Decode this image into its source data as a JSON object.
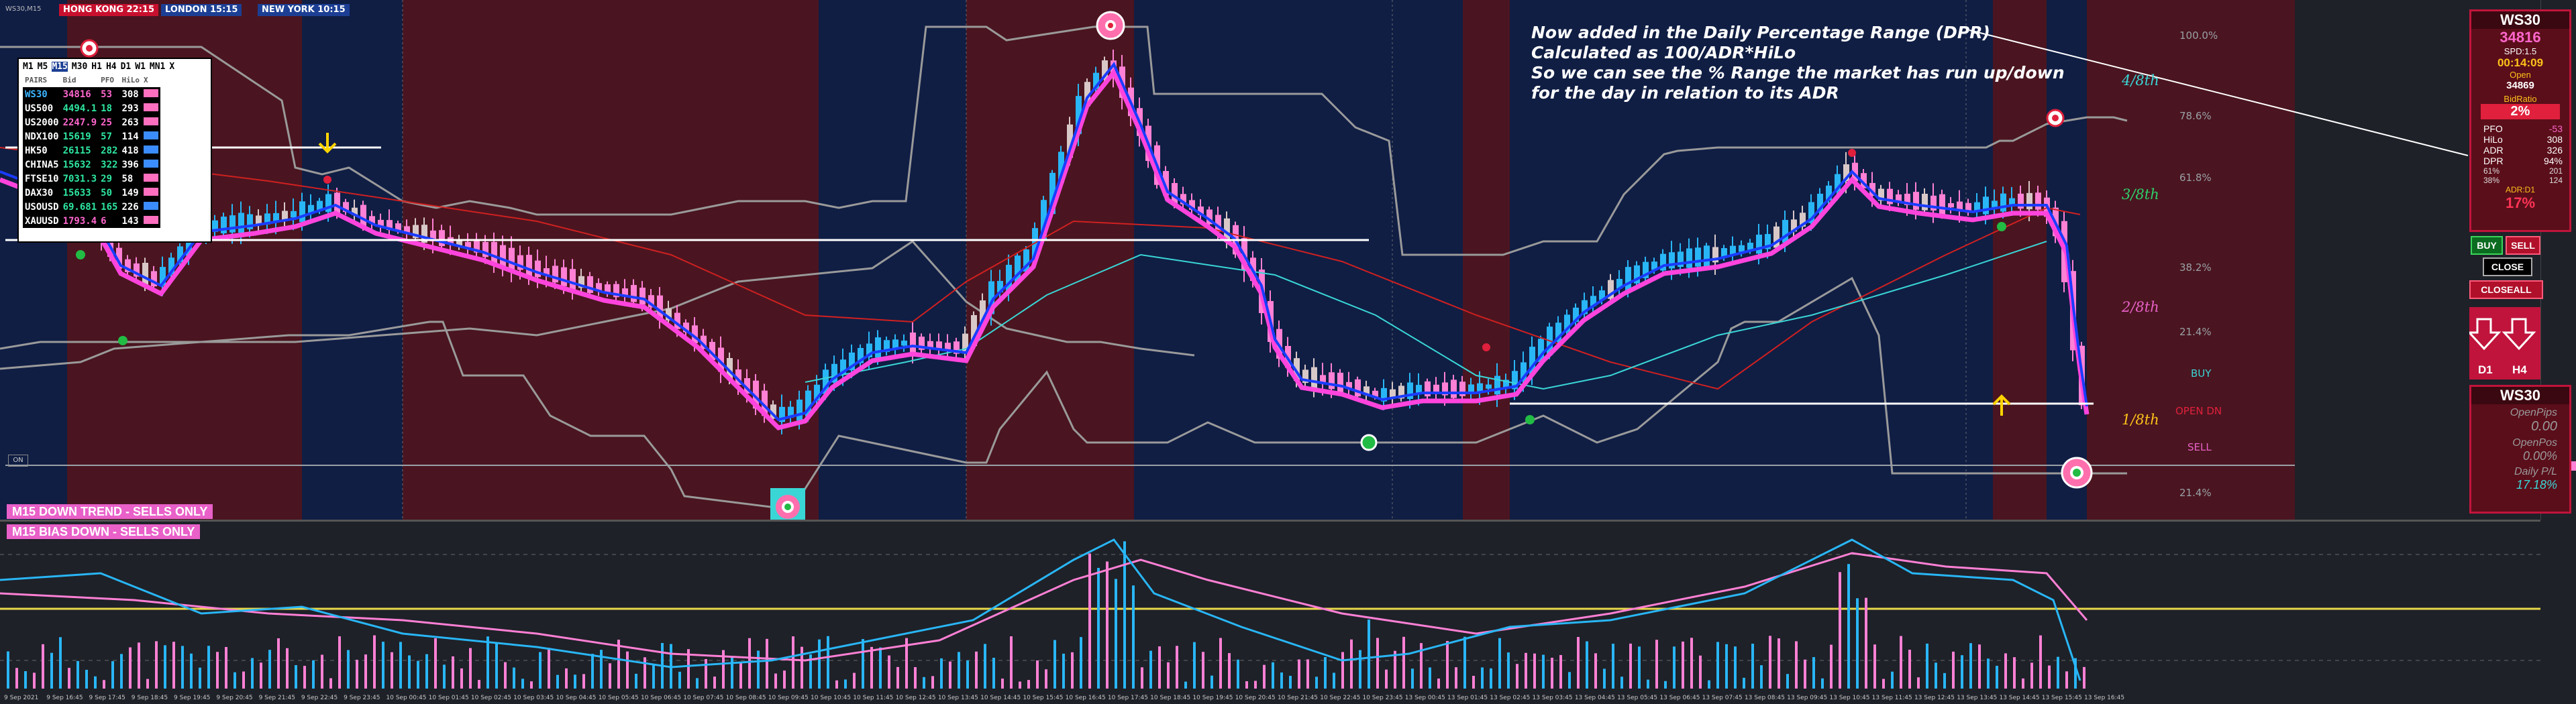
{
  "title_bar": {
    "sessions": [
      {
        "label": "HONG KONG 22:15",
        "color": "#c8102e"
      },
      {
        "label": "LONDON 15:15",
        "color": "#1c3f94"
      },
      {
        "label": "NEW YORK 10:15",
        "color": "#1c3f94"
      }
    ]
  },
  "pairs_panel": {
    "timeframes": [
      "M1",
      "M5",
      "M15",
      "M30",
      "H1",
      "H4",
      "D1",
      "W1",
      "MN1",
      "X"
    ],
    "active_timeframe": "M15",
    "columns": [
      "PAIRS",
      "Bid",
      "PFO",
      "HiLo",
      "X"
    ],
    "rows": [
      {
        "pair": "WS30",
        "bid": "34816",
        "pfo": "53",
        "hilo": "308",
        "pair_color": "#3ab4ff",
        "bid_color": "#ff66cc",
        "pfo_color": "#ff66cc",
        "swatch": "#ff6fbf"
      },
      {
        "pair": "US500",
        "bid": "4494.1",
        "pfo": "18",
        "hilo": "293",
        "pair_color": "#ffffff",
        "bid_color": "#2ee6a0",
        "pfo_color": "#2ee6a0",
        "swatch": "#ff6fbf"
      },
      {
        "pair": "US2000",
        "bid": "2247.9",
        "pfo": "25",
        "hilo": "263",
        "pair_color": "#ffffff",
        "bid_color": "#ff66cc",
        "pfo_color": "#ff66cc",
        "swatch": "#ff6fbf"
      },
      {
        "pair": "NDX100",
        "bid": "15619",
        "pfo": "57",
        "hilo": "114",
        "pair_color": "#ffffff",
        "bid_color": "#2ee6a0",
        "pfo_color": "#2ee6a0",
        "swatch": "#3a8cff"
      },
      {
        "pair": "HK50",
        "bid": "26115",
        "pfo": "282",
        "hilo": "418",
        "pair_color": "#ffffff",
        "bid_color": "#2ee6a0",
        "pfo_color": "#2ee6a0",
        "swatch": "#3a8cff"
      },
      {
        "pair": "CHINA5",
        "bid": "15632",
        "pfo": "322",
        "hilo": "396",
        "pair_color": "#ffffff",
        "bid_color": "#2ee6a0",
        "pfo_color": "#2ee6a0",
        "swatch": "#3a8cff"
      },
      {
        "pair": "FTSE10",
        "bid": "7031.3",
        "pfo": "29",
        "hilo": "58",
        "pair_color": "#ffffff",
        "bid_color": "#2ee6a0",
        "pfo_color": "#2ee6a0",
        "swatch": "#ff6fbf"
      },
      {
        "pair": "DAX30",
        "bid": "15633",
        "pfo": "50",
        "hilo": "149",
        "pair_color": "#ffffff",
        "bid_color": "#2ee6a0",
        "pfo_color": "#2ee6a0",
        "swatch": "#ff6fbf"
      },
      {
        "pair": "USOUSD",
        "bid": "69.681",
        "pfo": "165",
        "hilo": "226",
        "pair_color": "#ffffff",
        "bid_color": "#2ee6a0",
        "pfo_color": "#2ee6a0",
        "swatch": "#3a8cff"
      },
      {
        "pair": "XAUUSD",
        "bid": "1793.4",
        "pfo": "6",
        "hilo": "143",
        "pair_color": "#ffffff",
        "bid_color": "#ff66cc",
        "pfo_color": "#ff66cc",
        "swatch": "#ff6fbf"
      }
    ]
  },
  "annotation": {
    "lines": [
      "Now added in the Daily Percentage Range (DPR)",
      "Calculated as 100/ADR*HiLo",
      "So we can see the % Range the market has run up/down",
      "for the day in relation to its ADR"
    ]
  },
  "range_levels": {
    "percent": [
      "100.0%",
      "78.6%",
      "61.8%",
      "38.2%",
      "21.4%",
      "21.4%"
    ],
    "octaves": [
      {
        "label": "4/8th",
        "color": "#3ad6d6"
      },
      {
        "label": "3/8th",
        "color": "#2ed16a"
      },
      {
        "label": "2/8th",
        "color": "#e860c8"
      },
      {
        "label": "1/8th",
        "color": "#ffc21a"
      }
    ],
    "buy_label": "BUY",
    "open_dn_label": "OPEN DN",
    "sell_label": "SELL"
  },
  "info_panel": {
    "symbol": "WS30",
    "price": "34816",
    "spread": "SPD:1.5",
    "timer": "00:14:09",
    "open_label": "Open",
    "open_value": "34869",
    "bid_ratio_label": "BidRatio",
    "bid_ratio_value": "2%",
    "stats": [
      {
        "k": "PFO",
        "v": "-53",
        "vc": "#ff66cc"
      },
      {
        "k": "HiLo",
        "v": "308",
        "vc": "#ffffff"
      },
      {
        "k": "ADR",
        "v": "326",
        "vc": "#ffffff"
      },
      {
        "k": "DPR",
        "v": "94%",
        "vc": "#ffffff"
      }
    ],
    "ratio_rows": [
      {
        "k": "61%",
        "v": "201"
      },
      {
        "k": "38%",
        "v": "124"
      }
    ],
    "adr_d1": "ADR:D1",
    "adr_d1_value": "17%"
  },
  "trade_buttons": {
    "buy": "BUY",
    "sell": "SELL",
    "close": "CLOSE",
    "close_all": "CLOSEALL",
    "d1": "D1",
    "h4": "H4"
  },
  "account_panel": {
    "symbol": "WS30",
    "open_pips_label": "OpenPips",
    "open_pips_value": "0.00",
    "open_pos_label": "OpenPos",
    "open_pos_value": "0.00%",
    "daily_pl_label": "Daily P/L",
    "daily_pl_value": "17.18%"
  },
  "banners": {
    "trend": "M15 DOWN TREND - SELLS ONLY",
    "bias": "M15 BIAS DOWN - SELLS ONLY"
  },
  "time_axis": [
    "9 Sep 2021",
    "9 Sep 16:45",
    "9 Sep 17:45",
    "9 Sep 18:45",
    "9 Sep 19:45",
    "9 Sep 20:45",
    "9 Sep 21:45",
    "9 Sep 22:45",
    "9 Sep 23:45",
    "10 Sep 00:45",
    "10 Sep 01:45",
    "10 Sep 02:45",
    "10 Sep 03:45",
    "10 Sep 04:45",
    "10 Sep 05:45",
    "10 Sep 06:45",
    "10 Sep 07:45",
    "10 Sep 08:45",
    "10 Sep 09:45",
    "10 Sep 10:45",
    "10 Sep 11:45",
    "10 Sep 12:45",
    "10 Sep 13:45",
    "10 Sep 14:45",
    "10 Sep 15:45",
    "10 Sep 16:45",
    "10 Sep 17:45",
    "10 Sep 18:45",
    "10 Sep 19:45",
    "10 Sep 20:45",
    "10 Sep 21:45",
    "10 Sep 22:45",
    "10 Sep 23:45",
    "13 Sep 00:45",
    "13 Sep 01:45",
    "13 Sep 02:45",
    "13 Sep 03:45",
    "13 Sep 04:45",
    "13 Sep 05:45",
    "13 Sep 06:45",
    "13 Sep 07:45",
    "13 Sep 08:45",
    "13 Sep 09:45",
    "13 Sep 10:45",
    "13 Sep 11:45",
    "13 Sep 12:45",
    "13 Sep 13:45",
    "13 Sep 14:45",
    "13 Sep 15:45",
    "13 Sep 16:45"
  ],
  "colors": {
    "bg": "#1e2128",
    "zone_red": "#4a1520",
    "zone_blue": "#101e44",
    "bull": "#29b6f6",
    "bear": "#ff80d5",
    "doji": "#d8c8c8"
  }
}
